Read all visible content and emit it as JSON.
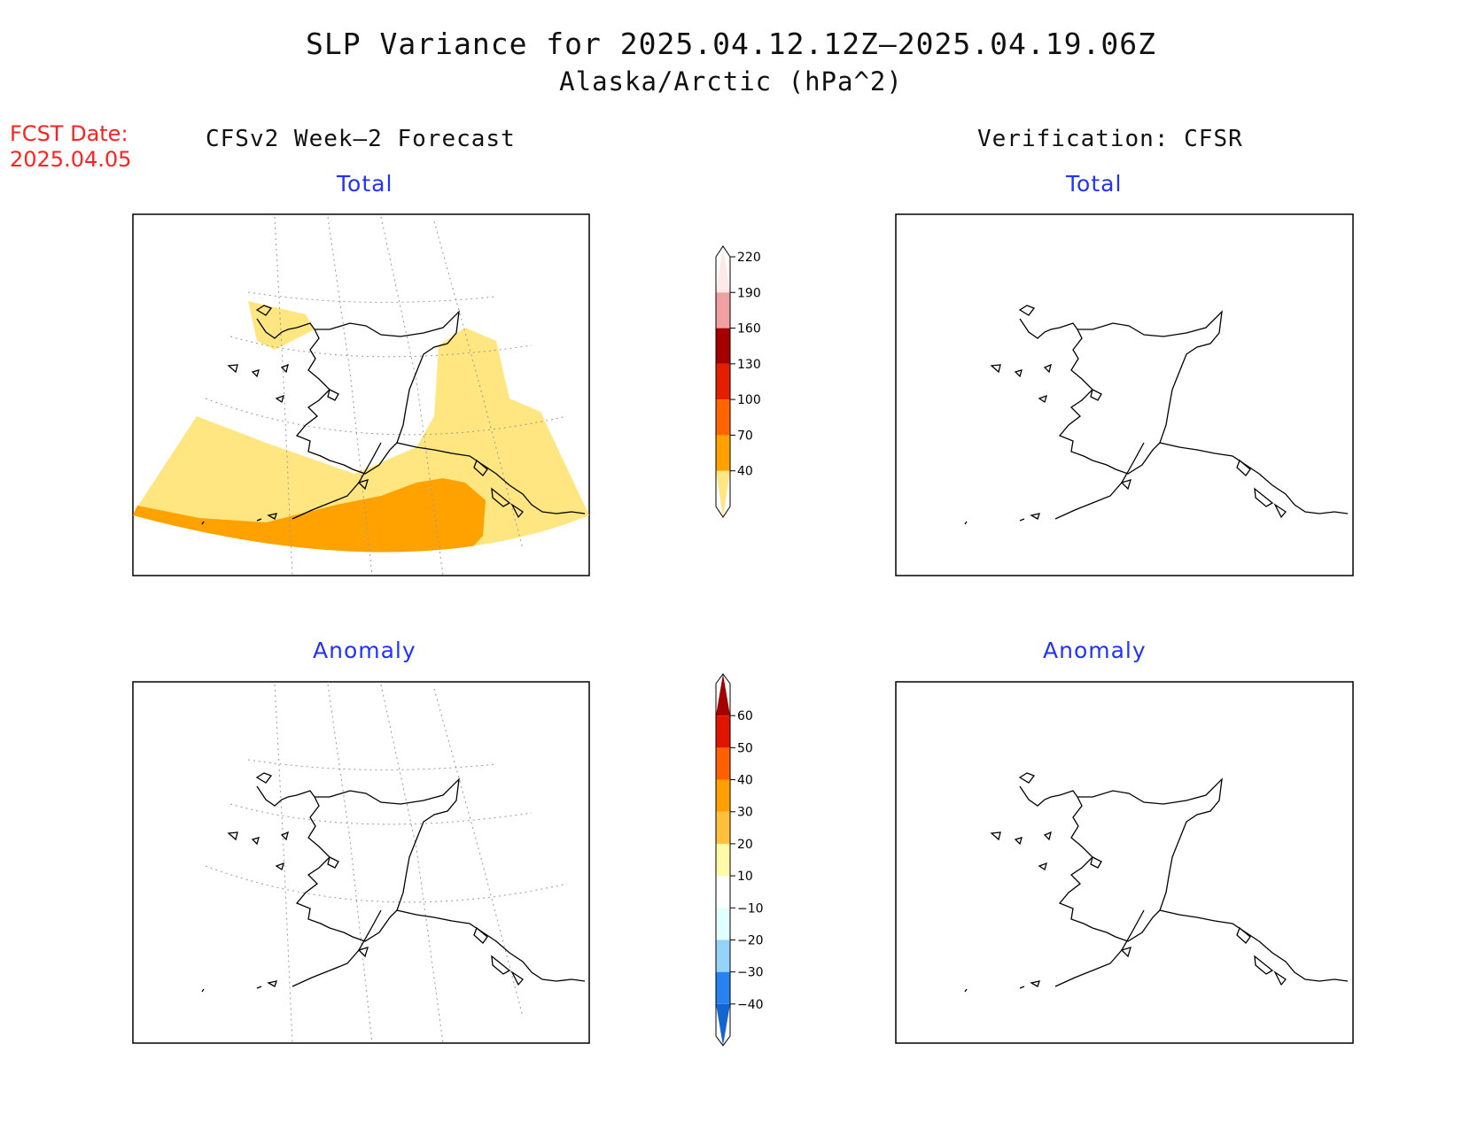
{
  "title": {
    "line1": "SLP Variance for 2025.04.12.12Z–2025.04.19.06Z",
    "line2": "Alaska/Arctic (hPa^2)"
  },
  "fcst_date": {
    "label": "FCST Date:",
    "value": "2025.04.05"
  },
  "columns": {
    "left": "CFSv2 Week–2 Forecast",
    "right": "Verification: CFSR"
  },
  "panels": {
    "top_left": "Total",
    "top_right": "Total",
    "bottom_left": "Anomaly",
    "bottom_right": "Anomaly"
  },
  "colorbars": {
    "total": {
      "levels": [
        "40",
        "70",
        "100",
        "130",
        "160",
        "190",
        "220"
      ],
      "colors": [
        "#ffe680",
        "#ffa200",
        "#ff6400",
        "#e61e00",
        "#a50000",
        "#f0a0a0",
        "#ffe8e8"
      ]
    },
    "anomaly": {
      "levels": [
        "−40",
        "−30",
        "−20",
        "−10",
        "10",
        "20",
        "30",
        "40",
        "50",
        "60"
      ],
      "colors": [
        "#1464d2",
        "#2882f0",
        "#96d2fa",
        "#e1ffff",
        "#ffffff",
        "#fffaaa",
        "#ffc03c",
        "#ffa000",
        "#ff6000",
        "#e11400",
        "#a50000"
      ]
    }
  },
  "colors": {
    "title_text": "#111111",
    "fcst_date": "#ff2222",
    "panel_subtitle": "#2233ff"
  }
}
